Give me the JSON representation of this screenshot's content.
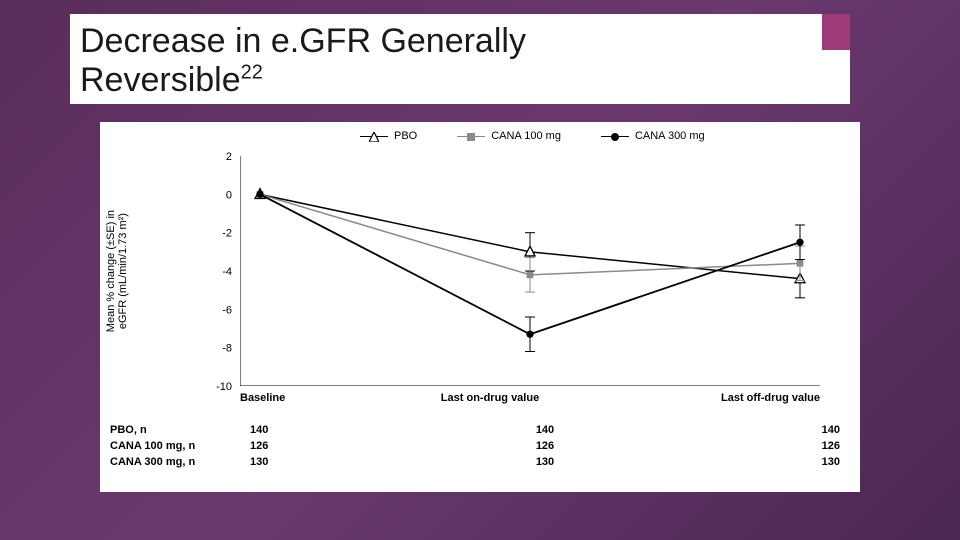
{
  "slide": {
    "title_line1": "Decrease in e.GFR Generally",
    "title_line2_pre": "Reversible",
    "title_sup": "22",
    "bg_gradient": [
      "#5a2d5a",
      "#6b3870",
      "#4a2850"
    ],
    "accent_color": "#a03b7a"
  },
  "chart": {
    "type": "line",
    "background_color": "#ffffff",
    "axis_color": "#000000",
    "ylabel_line1": "Mean % change (±SE) in",
    "ylabel_line2": "eGFR (mL/min/1.73 m²)",
    "ylabel_fontsize": 11,
    "ylim": [
      -10,
      2
    ],
    "yticks": [
      2,
      0,
      -2,
      -4,
      -6,
      -8,
      -10
    ],
    "x_categories": [
      "Baseline",
      "Last on-drug value",
      "Last off-drug value"
    ],
    "xtick_fontsize": 11,
    "series": [
      {
        "name": "PBO",
        "color": "#000000",
        "line_width": 1.5,
        "marker": "triangle-open",
        "marker_size": 9,
        "values": [
          0.0,
          -3.0,
          -4.4
        ],
        "err": [
          0,
          1.0,
          1.0
        ]
      },
      {
        "name": "CANA 100 mg",
        "color": "#8a8a8a",
        "line_width": 1.5,
        "marker": "square-filled",
        "marker_size": 8,
        "values": [
          0.0,
          -4.2,
          -3.6
        ],
        "err": [
          0,
          0.9,
          0.9
        ]
      },
      {
        "name": "CANA 300 mg",
        "color": "#000000",
        "line_width": 1.8,
        "marker": "circle-filled",
        "marker_size": 8,
        "values": [
          0.0,
          -7.3,
          -2.5
        ],
        "err": [
          0,
          0.9,
          0.9
        ]
      }
    ],
    "legend": {
      "labels": [
        "PBO",
        "CANA 100 mg",
        "CANA 300 mg"
      ],
      "fontsize": 11,
      "position": "top-center"
    },
    "n_table": {
      "rows": [
        {
          "label": "PBO, n",
          "values": [
            "140",
            "140",
            "140"
          ]
        },
        {
          "label": "CANA 100 mg, n",
          "values": [
            "126",
            "126",
            "126"
          ]
        },
        {
          "label": "CANA 300 mg, n",
          "values": [
            "130",
            "130",
            "130"
          ]
        }
      ],
      "fontsize": 11
    }
  }
}
